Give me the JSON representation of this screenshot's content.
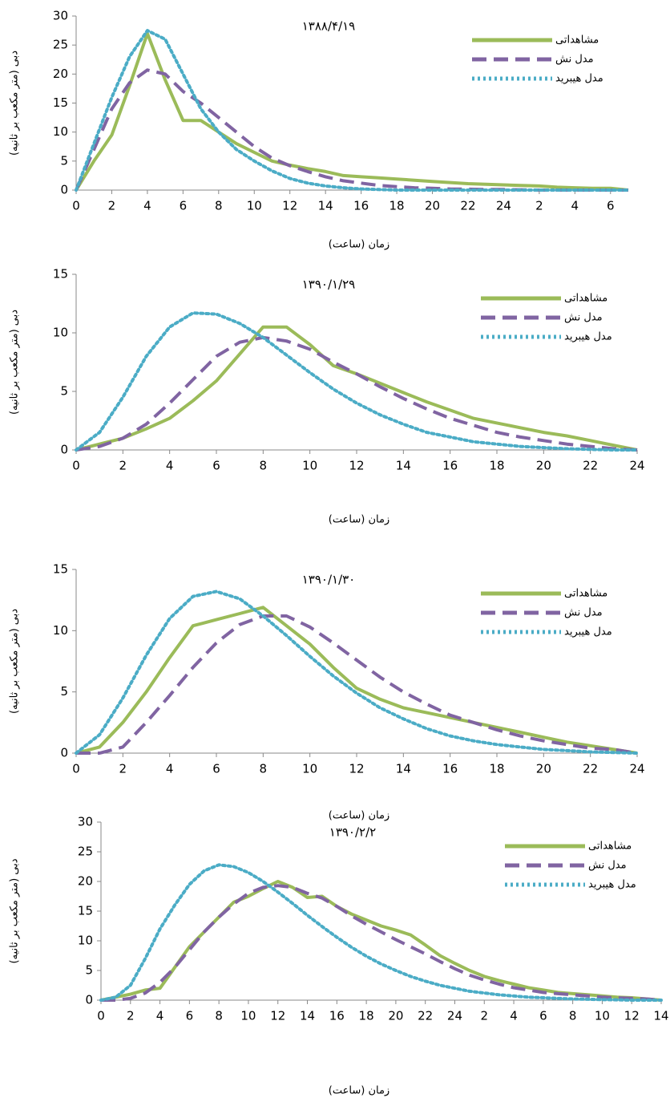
{
  "chart_data": [
    {
      "type": "line",
      "title": "۱۳۸۸/۴/۱۹",
      "xlabel": "زمان (ساعت)",
      "ylabel": "دبی (متر مکعب بر ثانیه)",
      "legend": "upper right",
      "x": [
        0,
        1,
        2,
        3,
        4,
        5,
        6,
        7,
        8,
        9,
        10,
        11,
        12,
        13,
        14,
        15,
        16,
        17,
        18,
        19,
        20,
        21,
        22,
        23,
        24,
        25,
        26,
        27,
        28,
        29,
        30,
        31
      ],
      "xlim": [
        0,
        31
      ],
      "xticks": [
        0,
        2,
        4,
        6,
        8,
        10,
        12,
        14,
        16,
        18,
        20,
        22,
        24,
        {
          "value": 26,
          "label": "2"
        },
        {
          "value": 28,
          "label": "4"
        },
        {
          "value": 30,
          "label": "6"
        }
      ],
      "ylim": [
        0,
        30
      ],
      "yticks": [
        0,
        5,
        10,
        15,
        20,
        25,
        30
      ],
      "series": [
        {
          "name": "مشاهداتی",
          "color": "#9bbb59",
          "style": "solid",
          "values": [
            0,
            5,
            9.5,
            18,
            27,
            19,
            12,
            12,
            10,
            8,
            6.5,
            5,
            4.3,
            3.7,
            3.2,
            2.5,
            2.3,
            2.1,
            1.9,
            1.7,
            1.5,
            1.3,
            1.1,
            1,
            0.9,
            0.8,
            0.7,
            0.5,
            0.4,
            0.3,
            0.3,
            0
          ]
        },
        {
          "name": "مدل نش",
          "color": "#8064a2",
          "style": "dashed",
          "values": [
            0,
            7,
            14,
            18.5,
            20.7,
            20,
            17,
            15,
            12.5,
            10,
            7.5,
            5.5,
            4.2,
            3.2,
            2.3,
            1.6,
            1.2,
            0.8,
            0.6,
            0.4,
            0.3,
            0.2,
            0.15,
            0.1,
            0.1,
            0.05,
            0,
            0,
            0,
            0,
            0,
            0
          ]
        },
        {
          "name": "مدل هیبرید",
          "color": "#4bacc6",
          "style": "dotted",
          "values": [
            0,
            8,
            16,
            23,
            27.5,
            26,
            20,
            14,
            10,
            7,
            5,
            3.3,
            2,
            1.2,
            0.7,
            0.4,
            0.2,
            0.1,
            0,
            0,
            0,
            0,
            0,
            0,
            0,
            0,
            0,
            0,
            0,
            0,
            0,
            0
          ]
        }
      ]
    },
    {
      "type": "line",
      "title": "۱۳۹۰/۱/۲۹",
      "xlabel": "زمان (ساعت)",
      "ylabel": "دبی (متر مکعب بر ثانیه)",
      "legend": "upper right",
      "x": [
        0,
        1,
        2,
        3,
        4,
        5,
        6,
        7,
        8,
        9,
        10,
        11,
        12,
        13,
        14,
        15,
        16,
        17,
        18,
        19,
        20,
        21,
        22,
        23,
        24
      ],
      "xlim": [
        0,
        24
      ],
      "xticks": [
        0,
        2,
        4,
        6,
        8,
        10,
        12,
        14,
        16,
        18,
        20,
        22,
        24
      ],
      "ylim": [
        0,
        15
      ],
      "yticks": [
        0,
        5,
        10,
        15
      ],
      "series": [
        {
          "name": "مشاهداتی",
          "color": "#9bbb59",
          "style": "solid",
          "values": [
            0,
            0.5,
            1,
            1.8,
            2.7,
            4.2,
            5.9,
            8.2,
            10.5,
            10.5,
            9,
            7.2,
            6.5,
            5.7,
            4.9,
            4.1,
            3.4,
            2.7,
            2.3,
            1.9,
            1.5,
            1.2,
            0.8,
            0.4,
            0
          ]
        },
        {
          "name": "مدل نش",
          "color": "#8064a2",
          "style": "dashed",
          "values": [
            0,
            0.3,
            1,
            2.2,
            4,
            6,
            8,
            9.2,
            9.6,
            9.3,
            8.6,
            7.5,
            6.5,
            5.4,
            4.4,
            3.5,
            2.7,
            2.1,
            1.5,
            1.1,
            0.8,
            0.5,
            0.3,
            0.1,
            0
          ]
        },
        {
          "name": "مدل هیبرید",
          "color": "#4bacc6",
          "style": "dotted",
          "values": [
            0,
            1.5,
            4.5,
            8,
            10.5,
            11.7,
            11.6,
            10.8,
            9.6,
            8.1,
            6.6,
            5.2,
            4,
            3,
            2.2,
            1.5,
            1.1,
            0.7,
            0.5,
            0.3,
            0.2,
            0.1,
            0.05,
            0,
            0
          ]
        }
      ]
    },
    {
      "type": "line",
      "title": "۱۳۹۰/۱/۳۰",
      "xlabel": "زمان (ساعت)",
      "ylabel": "دبی (متر مکعب بر ثانیه)",
      "legend": "upper right",
      "x": [
        0,
        1,
        2,
        3,
        4,
        5,
        6,
        7,
        8,
        9,
        10,
        11,
        12,
        13,
        14,
        15,
        16,
        17,
        18,
        19,
        20,
        21,
        22,
        23,
        24
      ],
      "xlim": [
        0,
        24
      ],
      "xticks": [
        0,
        2,
        4,
        6,
        8,
        10,
        12,
        14,
        16,
        18,
        20,
        22,
        24
      ],
      "ylim": [
        0,
        15
      ],
      "yticks": [
        0,
        5,
        10,
        15
      ],
      "series": [
        {
          "name": "مشاهداتی",
          "color": "#9bbb59",
          "style": "solid",
          "values": [
            0,
            0.5,
            2.5,
            5,
            7.8,
            10.4,
            10.9,
            11.4,
            11.9,
            10.4,
            8.9,
            7,
            5.3,
            4.4,
            3.7,
            3.3,
            2.9,
            2.5,
            2.1,
            1.7,
            1.3,
            0.9,
            0.6,
            0.3,
            0
          ]
        },
        {
          "name": "مدل نش",
          "color": "#8064a2",
          "style": "dashed",
          "values": [
            0,
            0,
            0.5,
            2.5,
            4.7,
            7,
            9,
            10.5,
            11.2,
            11.2,
            10.3,
            9,
            7.6,
            6.2,
            5,
            4,
            3.1,
            2.5,
            1.9,
            1.4,
            1,
            0.7,
            0.4,
            0.3,
            0
          ]
        },
        {
          "name": "مدل هیبرید",
          "color": "#4bacc6",
          "style": "dotted",
          "values": [
            0,
            1.5,
            4.5,
            8,
            11,
            12.8,
            13.2,
            12.6,
            11.2,
            9.6,
            7.9,
            6.3,
            4.9,
            3.7,
            2.8,
            2,
            1.4,
            1,
            0.7,
            0.5,
            0.3,
            0.2,
            0.1,
            0.05,
            0
          ]
        }
      ]
    },
    {
      "type": "line",
      "title": "۱۳۹۰/۲/۲",
      "xlabel": "زمان (ساعت)",
      "ylabel": "دبی (متر مکعب بر ثانیه)",
      "legend": "upper right",
      "x": [
        0,
        1,
        2,
        3,
        4,
        5,
        6,
        7,
        8,
        9,
        10,
        11,
        12,
        13,
        14,
        15,
        16,
        17,
        18,
        19,
        20,
        21,
        22,
        23,
        24,
        25,
        26,
        27,
        28,
        29,
        30,
        31,
        32,
        33,
        34,
        35,
        36,
        37,
        38
      ],
      "xlim": [
        0,
        38
      ],
      "xticks": [
        0,
        2,
        4,
        6,
        8,
        10,
        12,
        14,
        16,
        18,
        20,
        22,
        24,
        {
          "value": 26,
          "label": "2"
        },
        {
          "value": 28,
          "label": "4"
        },
        {
          "value": 30,
          "label": "6"
        },
        {
          "value": 32,
          "label": "8"
        },
        {
          "value": 34,
          "label": "10"
        },
        {
          "value": 36,
          "label": "12"
        },
        {
          "value": 38,
          "label": "14"
        }
      ],
      "ylim": [
        0,
        30
      ],
      "yticks": [
        0,
        5,
        10,
        15,
        20,
        25,
        30
      ],
      "series": [
        {
          "name": "مشاهداتی",
          "color": "#9bbb59",
          "style": "solid",
          "values": [
            0,
            0.5,
            1,
            1.7,
            2,
            5.5,
            9,
            11.5,
            14,
            16.5,
            17.5,
            18.8,
            20,
            19,
            17.3,
            17.5,
            15.8,
            14.5,
            13.5,
            12.5,
            11.8,
            11,
            9.3,
            7.5,
            6.2,
            5,
            4,
            3.3,
            2.7,
            2.1,
            1.7,
            1.3,
            1.1,
            0.9,
            0.7,
            0.5,
            0.4,
            0.2,
            0
          ]
        },
        {
          "name": "مدل نش",
          "color": "#8064a2",
          "style": "dashed",
          "values": [
            0,
            0,
            0.3,
            1.2,
            3,
            5.5,
            8.5,
            11.5,
            14,
            16.2,
            18,
            19,
            19.3,
            19,
            18,
            17.2,
            15.8,
            14.2,
            12.8,
            11.5,
            10.2,
            9,
            7.8,
            6.5,
            5.3,
            4.2,
            3.4,
            2.7,
            2.1,
            1.7,
            1.3,
            1.1,
            0.9,
            0.7,
            0.5,
            0.4,
            0.3,
            0.2,
            0
          ]
        },
        {
          "name": "مدل هیبرید",
          "color": "#4bacc6",
          "style": "dotted",
          "values": [
            0,
            0.5,
            2.5,
            7,
            12,
            16,
            19.5,
            21.8,
            22.8,
            22.5,
            21.5,
            20,
            18.2,
            16.3,
            14.3,
            12.4,
            10.6,
            8.9,
            7.4,
            6.1,
            5,
            4,
            3.2,
            2.5,
            2,
            1.5,
            1.2,
            0.9,
            0.7,
            0.5,
            0.4,
            0.3,
            0.2,
            0.15,
            0.1,
            0.05,
            0,
            0,
            0
          ]
        }
      ]
    }
  ]
}
